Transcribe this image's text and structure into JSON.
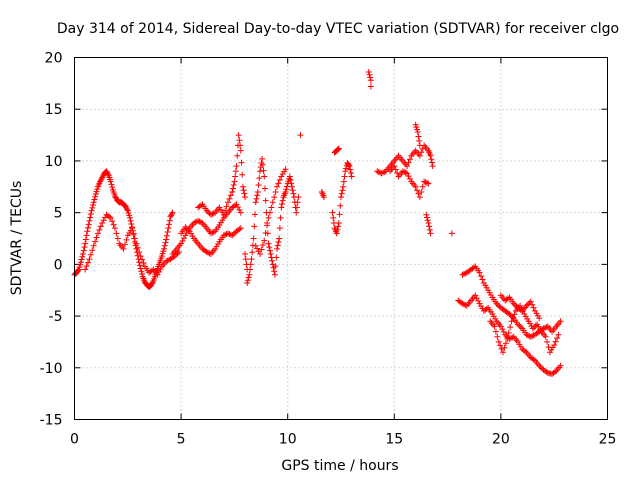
{
  "chart_data": {
    "type": "scatter",
    "title": "Day 314 of 2014, Sidereal Day-to-day VTEC variation (SDTVAR) for receiver clgo",
    "xlabel": "GPS time / hours",
    "ylabel": "SDTVAR / TECUs",
    "xlim": [
      0,
      25
    ],
    "ylim": [
      -15,
      20
    ],
    "xticks": [
      0,
      5,
      10,
      15,
      20,
      25
    ],
    "yticks": [
      -15,
      -10,
      -5,
      0,
      5,
      10,
      15,
      20
    ],
    "grid": true,
    "marker": "+",
    "color": "#ff0000",
    "series": [
      {
        "name": "clgo",
        "points": [
          [
            0.0,
            -1.0
          ],
          [
            0.1,
            -0.8
          ],
          [
            0.2,
            -0.5
          ],
          [
            0.3,
            0.2
          ],
          [
            0.4,
            1.0
          ],
          [
            0.5,
            2.0
          ],
          [
            0.6,
            3.2
          ],
          [
            0.7,
            4.2
          ],
          [
            0.8,
            5.2
          ],
          [
            0.9,
            6.0
          ],
          [
            1.0,
            6.8
          ],
          [
            1.1,
            7.5
          ],
          [
            1.2,
            8.0
          ],
          [
            1.3,
            8.4
          ],
          [
            1.4,
            8.8
          ],
          [
            1.5,
            9.0
          ],
          [
            1.6,
            8.6
          ],
          [
            1.7,
            8.0
          ],
          [
            1.8,
            7.2
          ],
          [
            1.9,
            6.6
          ],
          [
            2.0,
            6.2
          ],
          [
            2.1,
            6.0
          ],
          [
            2.2,
            6.0
          ],
          [
            2.3,
            5.8
          ],
          [
            2.4,
            5.6
          ],
          [
            2.5,
            5.2
          ],
          [
            2.6,
            4.5
          ],
          [
            2.7,
            3.6
          ],
          [
            2.8,
            2.5
          ],
          [
            2.9,
            1.5
          ],
          [
            3.0,
            0.5
          ],
          [
            3.1,
            -0.4
          ],
          [
            3.2,
            -1.2
          ],
          [
            3.3,
            -1.7
          ],
          [
            3.4,
            -2.0
          ],
          [
            3.5,
            -2.2
          ],
          [
            3.6,
            -2.0
          ],
          [
            3.7,
            -1.6
          ],
          [
            3.8,
            -1.0
          ],
          [
            3.9,
            -0.4
          ],
          [
            4.0,
            0.2
          ],
          [
            4.1,
            0.8
          ],
          [
            4.2,
            1.5
          ],
          [
            4.3,
            2.4
          ],
          [
            4.4,
            3.5
          ],
          [
            4.5,
            4.6
          ],
          [
            4.6,
            5.0
          ],
          [
            0.5,
            -0.5
          ],
          [
            0.7,
            0.5
          ],
          [
            0.9,
            1.8
          ],
          [
            1.1,
            3.0
          ],
          [
            1.3,
            4.0
          ],
          [
            1.5,
            4.8
          ],
          [
            1.7,
            4.5
          ],
          [
            1.9,
            3.5
          ],
          [
            2.1,
            2.0
          ],
          [
            2.3,
            1.5
          ],
          [
            2.5,
            2.8
          ],
          [
            2.7,
            3.5
          ],
          [
            2.9,
            2.0
          ],
          [
            3.1,
            0.8
          ],
          [
            3.3,
            -0.2
          ],
          [
            3.5,
            -0.8
          ],
          [
            3.7,
            -0.5
          ],
          [
            3.9,
            -1.0
          ],
          [
            4.1,
            -0.2
          ],
          [
            4.3,
            0.3
          ],
          [
            4.5,
            0.5
          ],
          [
            4.7,
            0.8
          ],
          [
            4.9,
            1.2
          ],
          [
            4.6,
            1.0
          ],
          [
            4.8,
            1.5
          ],
          [
            5.0,
            2.0
          ],
          [
            5.2,
            2.8
          ],
          [
            5.4,
            3.5
          ],
          [
            5.6,
            4.0
          ],
          [
            5.8,
            4.2
          ],
          [
            6.0,
            4.0
          ],
          [
            6.2,
            3.5
          ],
          [
            6.4,
            3.0
          ],
          [
            6.6,
            3.2
          ],
          [
            6.8,
            3.8
          ],
          [
            7.0,
            4.5
          ],
          [
            7.2,
            5.0
          ],
          [
            7.4,
            5.5
          ],
          [
            7.6,
            5.8
          ],
          [
            7.8,
            5.0
          ],
          [
            5.0,
            3.0
          ],
          [
            5.2,
            3.6
          ],
          [
            5.4,
            3.2
          ],
          [
            5.6,
            2.5
          ],
          [
            5.8,
            2.0
          ],
          [
            6.0,
            1.5
          ],
          [
            6.2,
            1.2
          ],
          [
            6.4,
            1.0
          ],
          [
            6.6,
            1.5
          ],
          [
            6.8,
            2.2
          ],
          [
            7.0,
            2.8
          ],
          [
            7.2,
            3.0
          ],
          [
            7.4,
            2.8
          ],
          [
            7.6,
            3.2
          ],
          [
            7.8,
            3.5
          ],
          [
            5.8,
            5.5
          ],
          [
            6.0,
            5.8
          ],
          [
            6.2,
            5.2
          ],
          [
            6.4,
            4.8
          ],
          [
            6.6,
            5.0
          ],
          [
            6.8,
            5.5
          ],
          [
            7.0,
            4.8
          ],
          [
            7.2,
            6.0
          ],
          [
            7.4,
            7.0
          ],
          [
            7.5,
            8.0
          ],
          [
            7.6,
            9.5
          ],
          [
            7.7,
            12.5
          ],
          [
            7.8,
            11.0
          ],
          [
            7.9,
            7.5
          ],
          [
            8.0,
            6.5
          ],
          [
            8.0,
            1.0
          ],
          [
            8.1,
            -0.5
          ],
          [
            8.1,
            -1.8
          ],
          [
            8.2,
            -1.0
          ],
          [
            8.3,
            0.5
          ],
          [
            8.4,
            2.5
          ],
          [
            8.5,
            6.0
          ],
          [
            8.6,
            7.0
          ],
          [
            8.7,
            9.0
          ],
          [
            8.8,
            10.2
          ],
          [
            8.9,
            8.5
          ],
          [
            9.0,
            5.0
          ],
          [
            9.1,
            2.0
          ],
          [
            9.2,
            1.0
          ],
          [
            9.3,
            0.0
          ],
          [
            9.4,
            -1.0
          ],
          [
            9.5,
            1.5
          ],
          [
            9.6,
            2.5
          ],
          [
            9.7,
            5.5
          ],
          [
            9.8,
            6.5
          ],
          [
            9.9,
            7.0
          ],
          [
            10.0,
            7.8
          ],
          [
            10.1,
            8.5
          ],
          [
            10.2,
            7.5
          ],
          [
            10.3,
            6.5
          ],
          [
            10.4,
            5.0
          ],
          [
            10.5,
            6.5
          ],
          [
            8.5,
            1.8
          ],
          [
            8.7,
            1.0
          ],
          [
            8.9,
            2.3
          ],
          [
            9.1,
            4.5
          ],
          [
            9.3,
            6.0
          ],
          [
            9.5,
            7.5
          ],
          [
            9.7,
            8.5
          ],
          [
            9.9,
            9.2
          ],
          [
            10.6,
            12.5
          ],
          [
            11.6,
            7.0
          ],
          [
            11.7,
            6.5
          ],
          [
            12.1,
            5.0
          ],
          [
            12.2,
            3.5
          ],
          [
            12.3,
            3.0
          ],
          [
            12.4,
            4.0
          ],
          [
            12.5,
            6.5
          ],
          [
            12.6,
            7.5
          ],
          [
            12.7,
            9.0
          ],
          [
            12.8,
            9.8
          ],
          [
            12.9,
            9.5
          ],
          [
            13.0,
            8.5
          ],
          [
            12.2,
            10.8
          ],
          [
            12.3,
            11.0
          ],
          [
            12.4,
            11.2
          ],
          [
            13.8,
            18.6
          ],
          [
            13.9,
            17.8
          ],
          [
            13.9,
            17.2
          ],
          [
            14.2,
            9.0
          ],
          [
            14.4,
            8.8
          ],
          [
            14.6,
            9.0
          ],
          [
            14.8,
            9.5
          ],
          [
            15.0,
            10.0
          ],
          [
            15.2,
            10.5
          ],
          [
            15.4,
            10.0
          ],
          [
            15.6,
            9.5
          ],
          [
            15.8,
            10.5
          ],
          [
            16.0,
            11.0
          ],
          [
            16.2,
            10.5
          ],
          [
            16.4,
            11.5
          ],
          [
            16.6,
            11.0
          ],
          [
            16.7,
            10.5
          ],
          [
            16.8,
            9.5
          ],
          [
            14.8,
            9.0
          ],
          [
            15.0,
            9.5
          ],
          [
            15.2,
            8.5
          ],
          [
            15.4,
            9.0
          ],
          [
            15.6,
            8.8
          ],
          [
            15.8,
            8.0
          ],
          [
            16.0,
            7.5
          ],
          [
            16.2,
            6.5
          ],
          [
            16.4,
            8.0
          ],
          [
            16.6,
            7.8
          ],
          [
            16.0,
            13.5
          ],
          [
            16.1,
            12.8
          ],
          [
            16.2,
            11.5
          ],
          [
            16.5,
            4.8
          ],
          [
            16.6,
            4.0
          ],
          [
            16.7,
            3.0
          ],
          [
            17.7,
            3.0
          ],
          [
            18.2,
            -1.0
          ],
          [
            18.4,
            -0.8
          ],
          [
            18.6,
            -0.5
          ],
          [
            18.8,
            -0.2
          ],
          [
            19.0,
            -0.8
          ],
          [
            19.2,
            -1.8
          ],
          [
            19.4,
            -2.5
          ],
          [
            19.6,
            -3.2
          ],
          [
            19.8,
            -3.8
          ],
          [
            20.0,
            -4.2
          ],
          [
            20.2,
            -4.5
          ],
          [
            20.4,
            -4.8
          ],
          [
            20.6,
            -5.2
          ],
          [
            20.8,
            -5.8
          ],
          [
            21.0,
            -6.2
          ],
          [
            21.2,
            -6.8
          ],
          [
            21.4,
            -7.0
          ],
          [
            21.6,
            -6.8
          ],
          [
            21.8,
            -6.5
          ],
          [
            22.0,
            -6.2
          ],
          [
            22.2,
            -6.0
          ],
          [
            22.4,
            -6.5
          ],
          [
            22.6,
            -6.0
          ],
          [
            22.8,
            -5.5
          ],
          [
            18.0,
            -3.5
          ],
          [
            18.2,
            -3.8
          ],
          [
            18.4,
            -4.0
          ],
          [
            18.6,
            -3.5
          ],
          [
            18.8,
            -3.0
          ],
          [
            19.0,
            -3.8
          ],
          [
            19.2,
            -4.5
          ],
          [
            19.4,
            -4.2
          ],
          [
            19.6,
            -4.8
          ],
          [
            19.8,
            -5.5
          ],
          [
            20.0,
            -6.0
          ],
          [
            20.2,
            -6.8
          ],
          [
            20.4,
            -7.2
          ],
          [
            20.6,
            -7.0
          ],
          [
            20.8,
            -7.5
          ],
          [
            21.0,
            -8.2
          ],
          [
            21.2,
            -8.5
          ],
          [
            21.4,
            -9.0
          ],
          [
            21.6,
            -9.3
          ],
          [
            21.8,
            -9.8
          ],
          [
            22.0,
            -10.2
          ],
          [
            22.2,
            -10.5
          ],
          [
            22.4,
            -10.6
          ],
          [
            22.6,
            -10.3
          ],
          [
            22.8,
            -9.8
          ],
          [
            19.5,
            -5.5
          ],
          [
            19.7,
            -6.0
          ],
          [
            19.9,
            -7.5
          ],
          [
            20.1,
            -8.5
          ],
          [
            20.3,
            -7.2
          ],
          [
            20.5,
            -5.5
          ],
          [
            20.7,
            -4.5
          ],
          [
            20.9,
            -4.0
          ],
          [
            21.1,
            -4.8
          ],
          [
            21.3,
            -5.5
          ],
          [
            21.5,
            -6.2
          ],
          [
            21.7,
            -5.8
          ],
          [
            21.9,
            -6.5
          ],
          [
            22.1,
            -7.0
          ],
          [
            22.3,
            -8.5
          ],
          [
            22.5,
            -7.8
          ],
          [
            22.7,
            -6.8
          ],
          [
            20.0,
            -3.0
          ],
          [
            20.2,
            -3.5
          ],
          [
            20.4,
            -3.2
          ],
          [
            20.6,
            -3.8
          ],
          [
            20.8,
            -4.2
          ],
          [
            21.0,
            -4.5
          ],
          [
            21.2,
            -4.0
          ],
          [
            21.4,
            -3.6
          ],
          [
            21.6,
            -4.5
          ],
          [
            21.8,
            -5.2
          ]
        ]
      }
    ]
  }
}
